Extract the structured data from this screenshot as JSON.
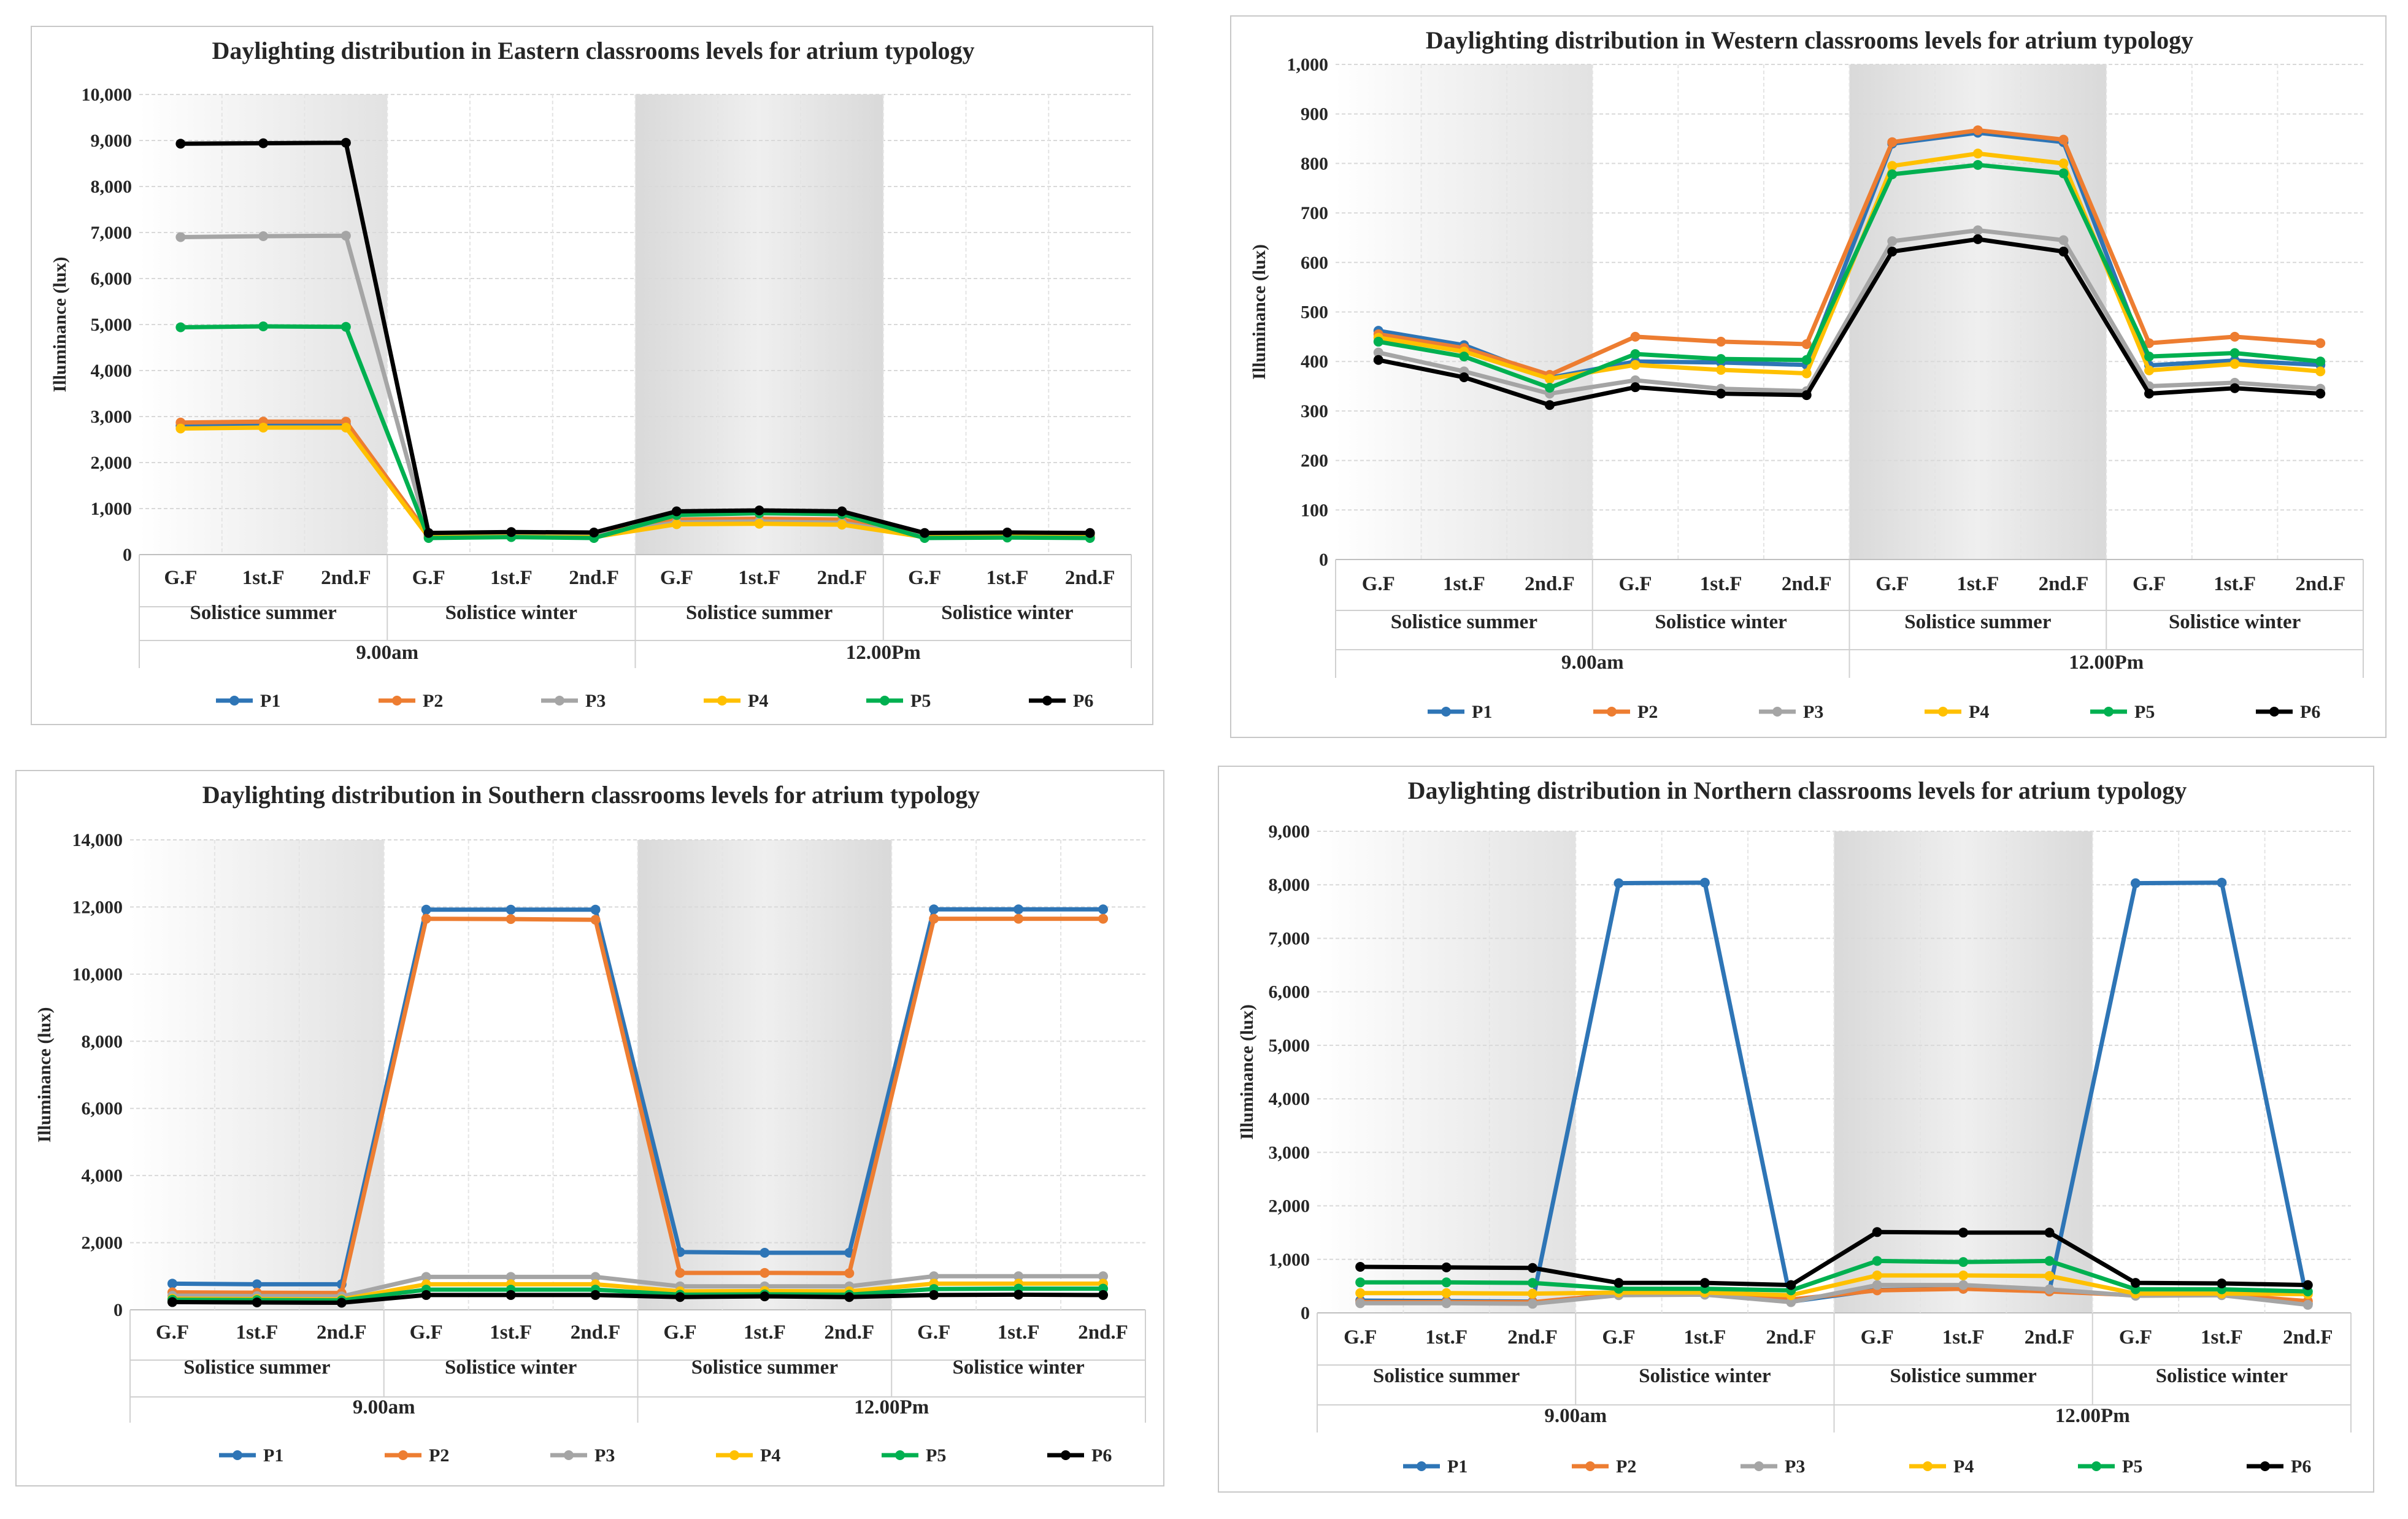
{
  "colors": {
    "P1": "#2E75B6",
    "P2": "#ED7D31",
    "P3": "#A5A5A5",
    "P4": "#FFC000",
    "P5": "#00B050",
    "P6": "#000000"
  },
  "chart_data": [
    {
      "id": "east",
      "type": "line",
      "title": "Daylighting distribution in Eastern classrooms levels for atrium typology",
      "ylabel": "Illuminance (lux)",
      "ylim": [
        0,
        10000
      ],
      "ystep": 1000,
      "yticks": [
        "0",
        "1,000",
        "2,000",
        "3,000",
        "4,000",
        "5,000",
        "6,000",
        "7,000",
        "8,000",
        "9,000",
        "10,000"
      ],
      "categories": [
        "G.F",
        "1st.F",
        "2nd.F",
        "G.F",
        "1st.F",
        "2nd.F",
        "G.F",
        "1st.F",
        "2nd.F",
        "G.F",
        "1st.F",
        "2nd.F"
      ],
      "seasons": [
        "Solistice summer",
        "Solistice winter",
        "Solistice summer",
        "Solistice winter"
      ],
      "times": [
        "9.00am",
        "12.00Pm"
      ],
      "shaded_groups": [
        0,
        2
      ],
      "series": [
        {
          "name": "P1",
          "values": [
            2800,
            2820,
            2830,
            420,
            440,
            430,
            700,
            720,
            700,
            410,
            420,
            410
          ]
        },
        {
          "name": "P2",
          "values": [
            2870,
            2890,
            2890,
            430,
            450,
            440,
            760,
            780,
            760,
            420,
            440,
            430
          ]
        },
        {
          "name": "P3",
          "values": [
            6900,
            6920,
            6930,
            400,
            420,
            410,
            700,
            720,
            690,
            400,
            410,
            400
          ]
        },
        {
          "name": "P4",
          "values": [
            2740,
            2760,
            2760,
            380,
            390,
            380,
            660,
            670,
            650,
            380,
            390,
            380
          ]
        },
        {
          "name": "P5",
          "values": [
            4940,
            4960,
            4950,
            360,
            380,
            360,
            860,
            900,
            880,
            360,
            370,
            360
          ]
        },
        {
          "name": "P6",
          "values": [
            8930,
            8940,
            8950,
            470,
            490,
            480,
            940,
            960,
            940,
            470,
            480,
            470
          ]
        }
      ]
    },
    {
      "id": "west",
      "type": "line",
      "title": "Daylighting distribution in Western classrooms levels for atrium typology",
      "ylabel": "Illuminance (lux)",
      "ylim": [
        0,
        1000
      ],
      "ystep": 100,
      "yticks": [
        "0",
        "100",
        "200",
        "300",
        "400",
        "500",
        "600",
        "700",
        "800",
        "900",
        "1,000"
      ],
      "categories": [
        "G.F",
        "1st.F",
        "2nd.F",
        "G.F",
        "1st.F",
        "2nd.F",
        "G.F",
        "1st.F",
        "2nd.F",
        "G.F",
        "1st.F",
        "2nd.F"
      ],
      "seasons": [
        "Solistice summer",
        "Solistice winter",
        "Solistice summer",
        "Solistice winter"
      ],
      "times": [
        "9.00am",
        "12.00Pm"
      ],
      "shaded_groups": [
        0,
        2
      ],
      "series": [
        {
          "name": "P1",
          "values": [
            462,
            433,
            367,
            400,
            398,
            393,
            840,
            862,
            843,
            392,
            402,
            393
          ]
        },
        {
          "name": "P2",
          "values": [
            455,
            427,
            373,
            450,
            440,
            435,
            843,
            867,
            848,
            437,
            450,
            437
          ]
        },
        {
          "name": "P3",
          "values": [
            418,
            380,
            335,
            362,
            345,
            340,
            643,
            665,
            645,
            350,
            357,
            345
          ]
        },
        {
          "name": "P4",
          "values": [
            448,
            420,
            365,
            393,
            383,
            376,
            795,
            820,
            800,
            382,
            395,
            380
          ]
        },
        {
          "name": "P5",
          "values": [
            440,
            410,
            347,
            415,
            405,
            403,
            778,
            797,
            780,
            410,
            417,
            400
          ]
        },
        {
          "name": "P6",
          "values": [
            403,
            368,
            312,
            348,
            335,
            332,
            622,
            647,
            622,
            335,
            346,
            335
          ]
        }
      ]
    },
    {
      "id": "south",
      "type": "line",
      "title": "Daylighting distribution in Southern classrooms levels for atrium typology",
      "ylabel": "Illuminance (lux)",
      "ylim": [
        0,
        14000
      ],
      "ystep": 2000,
      "yticks": [
        "0",
        "2,000",
        "4,000",
        "6,000",
        "8,000",
        "10,000",
        "12,000",
        "14,000"
      ],
      "categories": [
        "G.F",
        "1st.F",
        "2nd.F",
        "G.F",
        "1st.F",
        "2nd.F",
        "G.F",
        "1st.F",
        "2nd.F",
        "G.F",
        "1st.F",
        "2nd.F"
      ],
      "seasons": [
        "Solistice summer",
        "Solistice winter",
        "Solistice summer",
        "Solistice winter"
      ],
      "times": [
        "9.00am",
        "12.00Pm"
      ],
      "shaded_groups": [
        0,
        2
      ],
      "series": [
        {
          "name": "P1",
          "values": [
            780,
            760,
            760,
            11920,
            11920,
            11920,
            1720,
            1700,
            1700,
            11930,
            11930,
            11930
          ]
        },
        {
          "name": "P2",
          "values": [
            520,
            510,
            500,
            11650,
            11640,
            11620,
            1100,
            1100,
            1090,
            11650,
            11650,
            11650
          ]
        },
        {
          "name": "P3",
          "values": [
            420,
            410,
            400,
            980,
            980,
            980,
            700,
            700,
            700,
            1000,
            1000,
            1000
          ]
        },
        {
          "name": "P4",
          "values": [
            330,
            320,
            310,
            760,
            760,
            760,
            550,
            560,
            550,
            780,
            780,
            780
          ]
        },
        {
          "name": "P5",
          "values": [
            300,
            290,
            280,
            600,
            600,
            600,
            450,
            460,
            450,
            620,
            630,
            630
          ]
        },
        {
          "name": "P6",
          "values": [
            230,
            220,
            210,
            440,
            440,
            440,
            380,
            400,
            380,
            440,
            450,
            440
          ]
        }
      ]
    },
    {
      "id": "north",
      "type": "line",
      "title": "Daylighting distribution in Northern classrooms levels for atrium typology",
      "ylabel": "Illuminance (lux)",
      "ylim": [
        0,
        9000
      ],
      "ystep": 1000,
      "yticks": [
        "0",
        "1,000",
        "2,000",
        "3,000",
        "4,000",
        "5,000",
        "6,000",
        "7,000",
        "8,000",
        "9,000"
      ],
      "categories": [
        "G.F",
        "1st.F",
        "2nd.F",
        "G.F",
        "1st.F",
        "2nd.F",
        "G.F",
        "1st.F",
        "2nd.F",
        "G.F",
        "1st.F",
        "2nd.F"
      ],
      "seasons": [
        "Solistice summer",
        "Solistice winter",
        "Solistice summer",
        "Solistice winter"
      ],
      "times": [
        "9.00am",
        "12.00Pm"
      ],
      "shaded_groups": [
        0,
        2
      ],
      "series": [
        {
          "name": "P1",
          "values": [
            230,
            220,
            210,
            8030,
            8040,
            210,
            430,
            450,
            420,
            8030,
            8040,
            170
          ]
        },
        {
          "name": "P2",
          "values": [
            200,
            200,
            200,
            350,
            350,
            250,
            420,
            450,
            400,
            330,
            340,
            220
          ]
        },
        {
          "name": "P3",
          "values": [
            180,
            180,
            170,
            330,
            340,
            200,
            520,
            520,
            440,
            320,
            330,
            150
          ]
        },
        {
          "name": "P4",
          "values": [
            370,
            370,
            360,
            380,
            380,
            330,
            700,
            700,
            690,
            360,
            360,
            350
          ]
        },
        {
          "name": "P5",
          "values": [
            570,
            570,
            560,
            450,
            450,
            420,
            970,
            950,
            970,
            440,
            440,
            400
          ]
        },
        {
          "name": "P6",
          "values": [
            860,
            850,
            840,
            560,
            560,
            520,
            1510,
            1500,
            1500,
            560,
            550,
            520
          ]
        }
      ]
    }
  ]
}
